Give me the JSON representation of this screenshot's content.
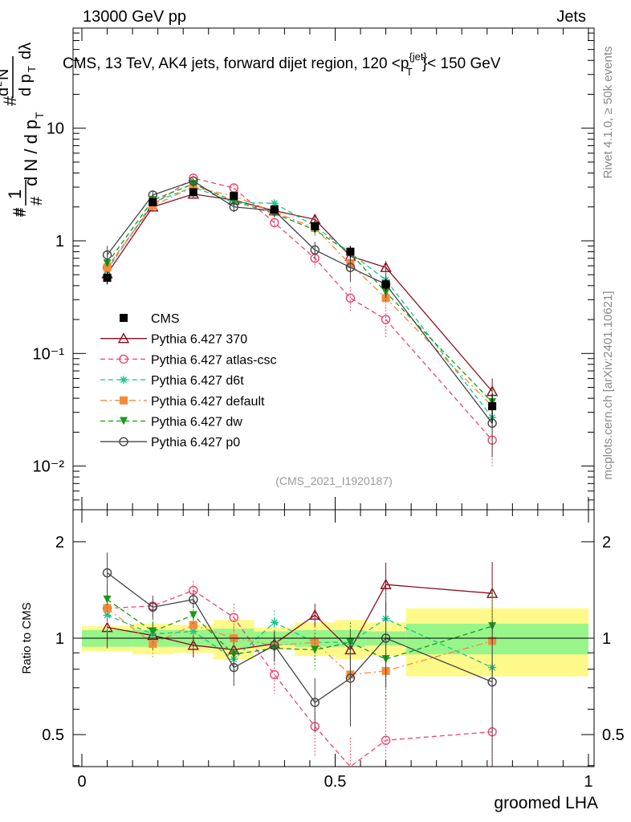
{
  "header": {
    "left": "13000 GeV pp",
    "right": "Jets"
  },
  "side_labels": {
    "rivet": "Rivet 4.1.0, ≥ 50k events",
    "mcplots": "mcplots.cern.ch [arXiv:2401.10621]"
  },
  "main_title": {
    "prefix": "CMS, 13 TeV, AK4 jets, forward dijet region, 120 <p",
    "sup": "{jet}",
    "sub": "T",
    "suffix": "}< 150 GeV"
  },
  "ylabel_main": "1/N dN/dpT d²N/dpT dλ",
  "analysis_tag": "(CMS_2021_I1920187)",
  "chart_data": [
    {
      "type": "line",
      "panel": "main",
      "title": "CMS, 13 TeV, AK4 jets, forward dijet region, 120 < pT{jet} < 150 GeV",
      "xlabel": "groomed LHA",
      "ylabel": "1/N d²N/dpT dλ",
      "yscale": "log",
      "xlim": [
        -0.017,
        1.01
      ],
      "ylim": [
        0.004,
        70
      ],
      "yticks": [
        {
          "v": 0.01,
          "label": "10⁻²"
        },
        {
          "v": 0.1,
          "label": "10⁻¹"
        },
        {
          "v": 1,
          "label": "1"
        },
        {
          "v": 10,
          "label": "10"
        }
      ],
      "legend_position": "lower-left",
      "x": [
        0.05,
        0.14,
        0.22,
        0.3,
        0.38,
        0.46,
        0.53,
        0.6,
        0.81
      ],
      "data": {
        "name": "CMS",
        "values": [
          0.47,
          2.2,
          2.7,
          2.5,
          1.9,
          1.35,
          0.8,
          0.41,
          0.034
        ],
        "errors": [
          0.06,
          0.15,
          0.2,
          0.2,
          0.15,
          0.15,
          0.1,
          0.05,
          0.01
        ]
      },
      "series": [
        {
          "name": "Pythia 6.427 370",
          "color": "#8b0e1f",
          "dash": "",
          "marker": "triangle-open",
          "values": [
            0.51,
            2.0,
            2.6,
            2.3,
            1.85,
            1.55,
            0.73,
            0.58,
            0.046
          ],
          "errors": [
            0.05,
            0.15,
            0.2,
            0.2,
            0.15,
            0.15,
            0.12,
            0.08,
            0.014
          ]
        },
        {
          "name": "Pythia 6.427 atlas-csc",
          "color": "#f0436c",
          "dash": "6,4",
          "marker": "circle-open",
          "values": [
            0.58,
            2.1,
            3.6,
            2.95,
            1.45,
            0.7,
            0.31,
            0.2,
            0.017
          ],
          "errors": [
            0.06,
            0.15,
            0.2,
            0.2,
            0.15,
            0.12,
            0.08,
            0.06,
            0.007
          ]
        },
        {
          "name": "Pythia 6.427 d6t",
          "color": "#18c48c",
          "dash": "6,4",
          "marker": "star",
          "values": [
            0.55,
            2.2,
            3.0,
            2.2,
            2.15,
            1.35,
            0.78,
            0.45,
            0.027
          ],
          "errors": [
            0.06,
            0.15,
            0.2,
            0.2,
            0.15,
            0.15,
            0.12,
            0.08,
            0.01
          ]
        },
        {
          "name": "Pythia 6.427 default",
          "color": "#f58a3c",
          "dash": "8,4,2,4",
          "marker": "square",
          "values": [
            0.58,
            2.05,
            3.0,
            2.5,
            1.8,
            1.3,
            0.62,
            0.31,
            0.034
          ],
          "errors": [
            0.06,
            0.15,
            0.2,
            0.2,
            0.15,
            0.15,
            0.12,
            0.07,
            0.012
          ]
        },
        {
          "name": "Pythia 6.427 dw",
          "color": "#1a9a1a",
          "dash": "6,4",
          "marker": "triangle-down",
          "values": [
            0.63,
            2.3,
            3.2,
            2.25,
            1.75,
            1.25,
            0.78,
            0.35,
            0.037
          ],
          "errors": [
            0.06,
            0.15,
            0.2,
            0.2,
            0.15,
            0.15,
            0.12,
            0.07,
            0.013
          ]
        },
        {
          "name": "Pythia 6.427 p0",
          "color": "#444444",
          "dash": "",
          "marker": "circle-open",
          "values": [
            0.75,
            2.55,
            3.4,
            2.0,
            1.85,
            0.83,
            0.58,
            0.41,
            0.024
          ],
          "errors": [
            0.15,
            0.2,
            0.2,
            0.2,
            0.15,
            0.15,
            0.15,
            0.1,
            0.012
          ]
        }
      ]
    },
    {
      "type": "line",
      "panel": "ratio",
      "ylabel": "Ratio to CMS",
      "xlabel": "groomed LHA",
      "yscale": "log",
      "xlim": [
        -0.017,
        1.01
      ],
      "ylim": [
        0.4,
        2.5
      ],
      "yticks": [
        {
          "v": 0.5,
          "label": "0.5"
        },
        {
          "v": 1,
          "label": "1"
        },
        {
          "v": 2,
          "label": "2"
        }
      ],
      "xticks": [
        {
          "v": 0,
          "label": "0"
        },
        {
          "v": 0.5,
          "label": "0.5"
        },
        {
          "v": 1,
          "label": "1"
        }
      ],
      "bands_x_edges": [
        0,
        0.1,
        0.18,
        0.26,
        0.34,
        0.42,
        0.5,
        0.56,
        0.64,
        1.0
      ],
      "band_inner": [
        0.06,
        0.06,
        0.06,
        0.07,
        0.05,
        0.06,
        0.06,
        0.05,
        0.11
      ],
      "band_outer": [
        0.09,
        0.11,
        0.1,
        0.14,
        0.08,
        0.12,
        0.14,
        0.12,
        0.24
      ],
      "x": [
        0.05,
        0.14,
        0.22,
        0.3,
        0.38,
        0.46,
        0.53,
        0.6,
        0.81
      ],
      "series": [
        {
          "name": "Pythia 6.427 370",
          "values": [
            1.08,
            1.02,
            0.95,
            0.92,
            0.96,
            1.18,
            0.92,
            1.47,
            1.38
          ],
          "errors": [
            0.15,
            0.1,
            0.08,
            0.1,
            0.1,
            0.1,
            0.15,
            0.25,
            0.35
          ]
        },
        {
          "name": "Pythia 6.427 atlas-csc",
          "values": [
            1.24,
            1.26,
            1.41,
            1.16,
            0.77,
            0.53,
            0.37,
            0.48,
            0.51
          ],
          "errors": [
            0.15,
            0.1,
            0.1,
            0.12,
            0.1,
            0.1,
            0.12,
            0.2,
            0.3
          ]
        },
        {
          "name": "Pythia 6.427 d6t",
          "values": [
            1.18,
            1.03,
            1.05,
            0.86,
            1.12,
            0.97,
            0.97,
            1.15,
            0.81
          ],
          "errors": [
            0.15,
            0.1,
            0.08,
            0.1,
            0.1,
            0.12,
            0.15,
            0.25,
            0.3
          ]
        },
        {
          "name": "Pythia 6.427 default",
          "values": [
            1.24,
            0.96,
            1.1,
            1.0,
            0.95,
            0.97,
            0.77,
            0.79,
            0.98
          ],
          "errors": [
            0.15,
            0.1,
            0.08,
            0.1,
            0.1,
            0.12,
            0.15,
            0.22,
            0.35
          ]
        },
        {
          "name": "Pythia 6.427 dw",
          "values": [
            1.32,
            1.05,
            1.18,
            0.89,
            0.93,
            0.92,
            0.97,
            0.86,
            1.09
          ],
          "errors": [
            0.15,
            0.1,
            0.08,
            0.1,
            0.1,
            0.12,
            0.15,
            0.22,
            0.35
          ]
        },
        {
          "name": "Pythia 6.427 p0",
          "values": [
            1.6,
            1.25,
            1.32,
            0.81,
            0.95,
            0.63,
            0.75,
            1.0,
            0.73
          ],
          "errors": [
            0.25,
            0.1,
            0.08,
            0.1,
            0.1,
            0.12,
            0.22,
            0.3,
            0.4
          ]
        }
      ]
    }
  ]
}
